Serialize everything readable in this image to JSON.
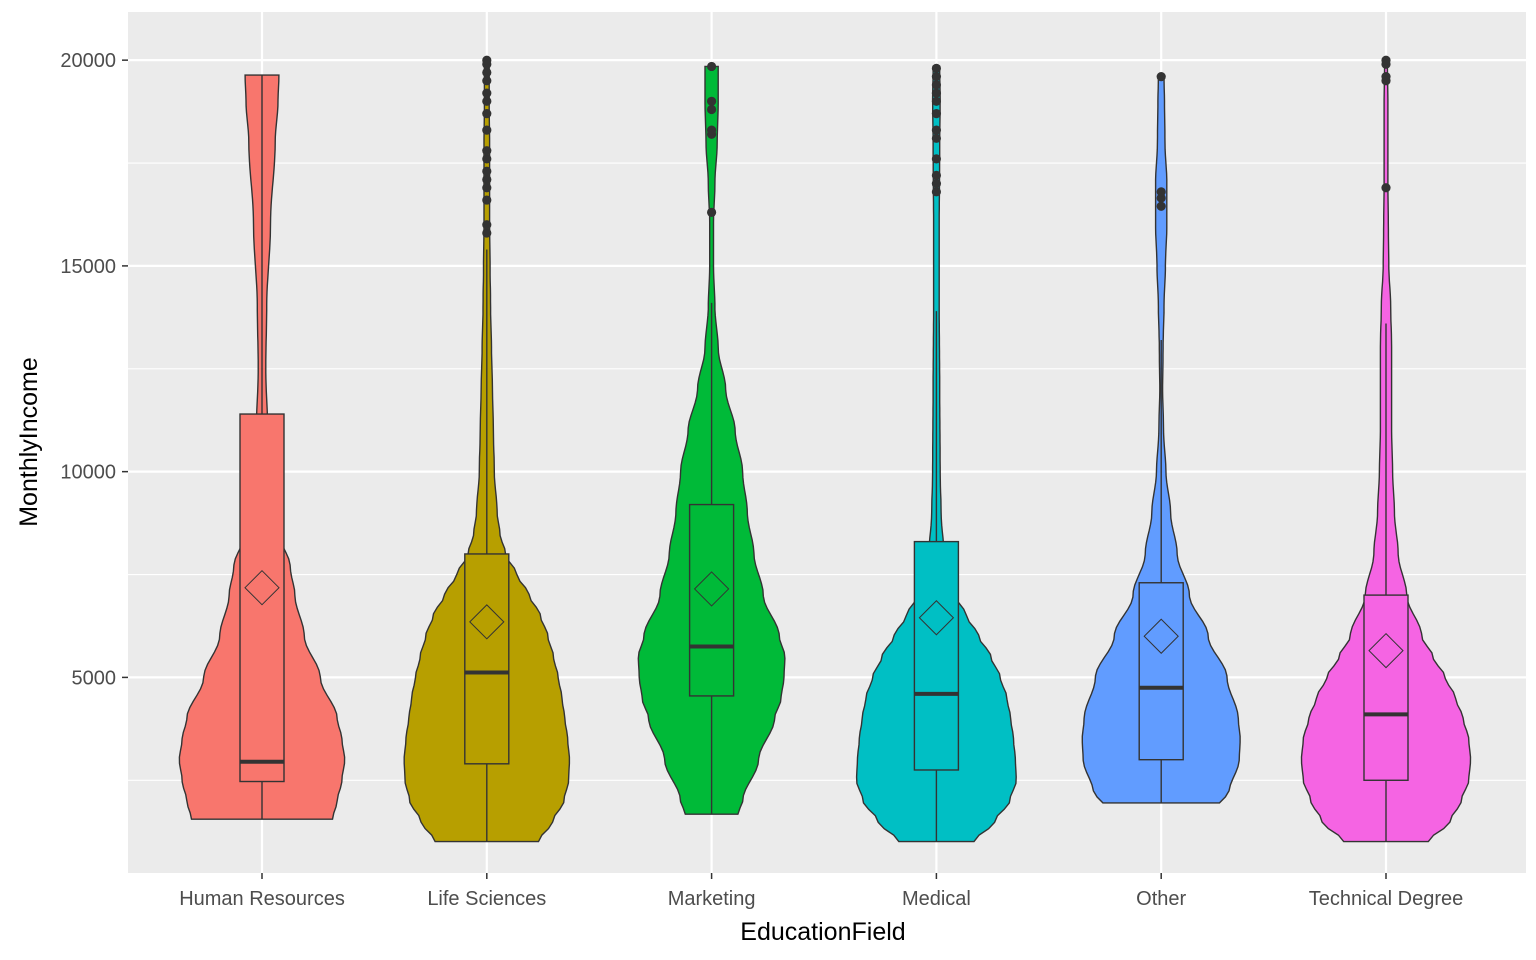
{
  "chart_data": {
    "type": "violin",
    "overlay": [
      "boxplot",
      "mean-diamond",
      "outlier-points"
    ],
    "xlabel": "EducationField",
    "ylabel": "MonthlyIncome",
    "ylim": [
      1009,
      19999
    ],
    "yticks": [
      5000,
      10000,
      15000,
      20000
    ],
    "ytick_labels": [
      "5000",
      "10000",
      "15000",
      "20000"
    ],
    "grid": true,
    "legend": "none",
    "categories": [
      "Human Resources",
      "Life Sciences",
      "Marketing",
      "Medical",
      "Other",
      "Technical Degree"
    ],
    "series": [
      {
        "category": "Human Resources",
        "color": "#F8766D",
        "min": 1555,
        "max": 19636,
        "q1": 2470,
        "median": 2950,
        "q3": 11400,
        "mean": 7180,
        "whisker_low": 1555,
        "whisker_high": 19636,
        "outliers": [],
        "density": [
          [
            1555,
            0.75
          ],
          [
            2000,
            0.8
          ],
          [
            2500,
            0.85
          ],
          [
            3000,
            0.88
          ],
          [
            3500,
            0.85
          ],
          [
            4000,
            0.8
          ],
          [
            5000,
            0.62
          ],
          [
            6000,
            0.45
          ],
          [
            7000,
            0.35
          ],
          [
            7700,
            0.3
          ],
          [
            8500,
            0.18
          ],
          [
            9500,
            0.12
          ],
          [
            11000,
            0.06
          ],
          [
            12500,
            0.04
          ],
          [
            14000,
            0.05
          ],
          [
            16000,
            0.09
          ],
          [
            18000,
            0.14
          ],
          [
            19000,
            0.17
          ],
          [
            19636,
            0.18
          ]
        ]
      },
      {
        "category": "Life Sciences",
        "color": "#B79F00",
        "min": 1009,
        "max": 19999,
        "q1": 2900,
        "median": 5120,
        "q3": 8000,
        "mean": 6350,
        "whisker_low": 1009,
        "whisker_high": 15400,
        "outliers": [
          15800,
          16000,
          16600,
          16900,
          17100,
          17300,
          17600,
          17800,
          18300,
          18700,
          19000,
          19200,
          19500,
          19700,
          19900,
          19999
        ],
        "density": [
          [
            1009,
            0.55
          ],
          [
            1500,
            0.7
          ],
          [
            2000,
            0.82
          ],
          [
            2500,
            0.87
          ],
          [
            3000,
            0.88
          ],
          [
            3500,
            0.86
          ],
          [
            4000,
            0.83
          ],
          [
            4500,
            0.8
          ],
          [
            5000,
            0.76
          ],
          [
            5500,
            0.71
          ],
          [
            6000,
            0.65
          ],
          [
            6500,
            0.57
          ],
          [
            7000,
            0.45
          ],
          [
            7500,
            0.32
          ],
          [
            8000,
            0.2
          ],
          [
            8500,
            0.14
          ],
          [
            9000,
            0.11
          ],
          [
            10000,
            0.08
          ],
          [
            11000,
            0.07
          ],
          [
            12000,
            0.06
          ],
          [
            13000,
            0.05
          ],
          [
            14000,
            0.04
          ],
          [
            15000,
            0.035
          ],
          [
            16000,
            0.03
          ],
          [
            17000,
            0.03
          ],
          [
            18000,
            0.03
          ],
          [
            19000,
            0.025
          ],
          [
            19999,
            0.025
          ]
        ]
      },
      {
        "category": "Marketing",
        "color": "#00BA38",
        "min": 1675,
        "max": 19847,
        "q1": 4550,
        "median": 5750,
        "q3": 9200,
        "mean": 7150,
        "whisker_low": 1675,
        "whisker_high": 14100,
        "outliers": [
          16300,
          18200,
          18300,
          18800,
          19000,
          19847
        ],
        "density": [
          [
            1675,
            0.28
          ],
          [
            2000,
            0.33
          ],
          [
            3000,
            0.5
          ],
          [
            4000,
            0.67
          ],
          [
            4500,
            0.74
          ],
          [
            5000,
            0.77
          ],
          [
            5500,
            0.78
          ],
          [
            6000,
            0.72
          ],
          [
            7000,
            0.55
          ],
          [
            8000,
            0.45
          ],
          [
            9000,
            0.38
          ],
          [
            10000,
            0.33
          ],
          [
            11000,
            0.25
          ],
          [
            12000,
            0.15
          ],
          [
            13000,
            0.07
          ],
          [
            14000,
            0.035
          ],
          [
            15000,
            0.02
          ],
          [
            16000,
            0.02
          ],
          [
            17000,
            0.035
          ],
          [
            18000,
            0.06
          ],
          [
            19000,
            0.07
          ],
          [
            19847,
            0.07
          ]
        ]
      },
      {
        "category": "Medical",
        "color": "#00BFC4",
        "min": 1009,
        "max": 19847,
        "q1": 2750,
        "median": 4600,
        "q3": 8300,
        "mean": 6450,
        "whisker_low": 1009,
        "whisker_high": 13900,
        "outliers": [
          16800,
          17000,
          17200,
          17600,
          18100,
          18300,
          18700,
          19000,
          19200,
          19400,
          19600,
          19800
        ],
        "density": [
          [
            1009,
            0.4
          ],
          [
            1500,
            0.62
          ],
          [
            2000,
            0.78
          ],
          [
            2500,
            0.85
          ],
          [
            3000,
            0.84
          ],
          [
            3500,
            0.82
          ],
          [
            4000,
            0.79
          ],
          [
            4500,
            0.75
          ],
          [
            5000,
            0.68
          ],
          [
            5500,
            0.58
          ],
          [
            6000,
            0.45
          ],
          [
            6500,
            0.32
          ],
          [
            7000,
            0.2
          ],
          [
            7500,
            0.12
          ],
          [
            8000,
            0.08
          ],
          [
            9000,
            0.05
          ],
          [
            10000,
            0.04
          ],
          [
            12000,
            0.035
          ],
          [
            14000,
            0.03
          ],
          [
            16000,
            0.03
          ],
          [
            18000,
            0.035
          ],
          [
            19000,
            0.04
          ],
          [
            19847,
            0.035
          ]
        ]
      },
      {
        "category": "Other",
        "color": "#619CFF",
        "min": 1950,
        "max": 19600,
        "q1": 3000,
        "median": 4750,
        "q3": 7300,
        "mean": 6000,
        "whisker_low": 1950,
        "whisker_high": 13200,
        "outliers": [
          16450,
          16650,
          16800,
          19600
        ],
        "density": [
          [
            1950,
            0.62
          ],
          [
            2200,
            0.72
          ],
          [
            3000,
            0.83
          ],
          [
            3500,
            0.84
          ],
          [
            4000,
            0.82
          ],
          [
            5000,
            0.7
          ],
          [
            6000,
            0.5
          ],
          [
            7000,
            0.3
          ],
          [
            8000,
            0.17
          ],
          [
            9000,
            0.1
          ],
          [
            10000,
            0.05
          ],
          [
            11000,
            0.025
          ],
          [
            12000,
            0.015
          ],
          [
            13000,
            0.02
          ],
          [
            14000,
            0.03
          ],
          [
            15000,
            0.045
          ],
          [
            16000,
            0.06
          ],
          [
            17000,
            0.06
          ],
          [
            18000,
            0.04
          ],
          [
            19000,
            0.035
          ],
          [
            19600,
            0.03
          ]
        ]
      },
      {
        "category": "Technical Degree",
        "color": "#F564E3",
        "min": 1009,
        "max": 19999,
        "q1": 2500,
        "median": 4100,
        "q3": 7000,
        "mean": 5650,
        "whisker_low": 1009,
        "whisker_high": 13600,
        "outliers": [
          16900,
          19500,
          19600,
          19900,
          19999
        ],
        "density": [
          [
            1009,
            0.45
          ],
          [
            1500,
            0.68
          ],
          [
            2000,
            0.8
          ],
          [
            2500,
            0.88
          ],
          [
            3000,
            0.9
          ],
          [
            3500,
            0.88
          ],
          [
            4000,
            0.82
          ],
          [
            4500,
            0.74
          ],
          [
            5000,
            0.63
          ],
          [
            5500,
            0.5
          ],
          [
            6000,
            0.38
          ],
          [
            7000,
            0.22
          ],
          [
            8000,
            0.13
          ],
          [
            9000,
            0.09
          ],
          [
            10000,
            0.07
          ],
          [
            11000,
            0.06
          ],
          [
            12000,
            0.06
          ],
          [
            13000,
            0.06
          ],
          [
            14000,
            0.05
          ],
          [
            15000,
            0.03
          ],
          [
            16000,
            0.025
          ],
          [
            17000,
            0.02
          ],
          [
            18000,
            0.02
          ],
          [
            19000,
            0.02
          ],
          [
            19999,
            0.015
          ]
        ]
      }
    ]
  }
}
